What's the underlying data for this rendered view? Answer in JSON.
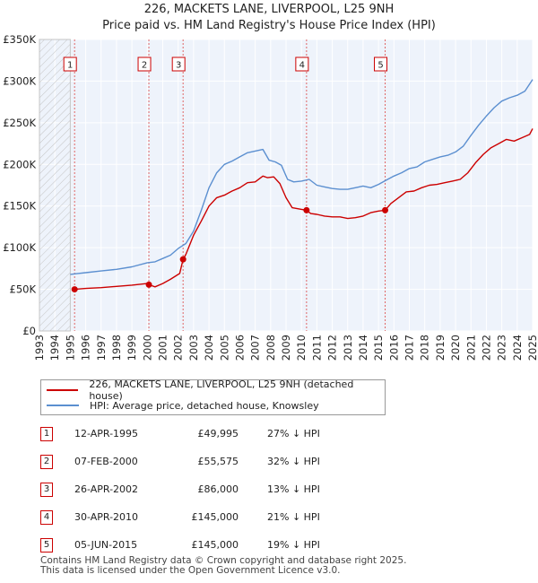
{
  "title": {
    "line1": "226, MACKETS LANE, LIVERPOOL, L25 9NH",
    "line2": "Price paid vs. HM Land Registry's House Price Index (HPI)"
  },
  "legend": {
    "price_label": "226, MACKETS LANE, LIVERPOOL, L25 9NH (detached house)",
    "hpi_label": "HPI: Average price, detached house, Knowsley",
    "price_color": "#cc0000",
    "hpi_color": "#5b8fd0"
  },
  "transactions": [
    {
      "num": "1",
      "date": "12-APR-1995",
      "price": "£49,995",
      "hpi": "27% ↓ HPI"
    },
    {
      "num": "2",
      "date": "07-FEB-2000",
      "price": "£55,575",
      "hpi": "32% ↓ HPI"
    },
    {
      "num": "3",
      "date": "26-APR-2002",
      "price": "£86,000",
      "hpi": "13% ↓ HPI"
    },
    {
      "num": "4",
      "date": "30-APR-2010",
      "price": "£145,000",
      "hpi": "21% ↓ HPI"
    },
    {
      "num": "5",
      "date": "05-JUN-2015",
      "price": "£145,000",
      "hpi": "19% ↓ HPI"
    }
  ],
  "footer": {
    "line1": "Contains HM Land Registry data © Crown copyright and database right 2025.",
    "line2": "This data is licensed under the Open Government Licence v3.0."
  },
  "chart_data": {
    "type": "line",
    "title": "226, MACKETS LANE, LIVERPOOL, L25 9NH — Price paid vs. HM Land Registry's House Price Index (HPI)",
    "xlabel": "",
    "ylabel": "",
    "xlim": [
      1993,
      2025
    ],
    "ylim": [
      0,
      350000
    ],
    "x_ticks": [
      1993,
      1994,
      1995,
      1996,
      1997,
      1998,
      1999,
      2000,
      2001,
      2002,
      2003,
      2004,
      2005,
      2006,
      2007,
      2008,
      2009,
      2010,
      2011,
      2012,
      2013,
      2014,
      2015,
      2016,
      2017,
      2018,
      2019,
      2020,
      2021,
      2022,
      2023,
      2024,
      2025
    ],
    "y_ticks": [
      {
        "value": 0,
        "label": "£0"
      },
      {
        "value": 50000,
        "label": "£50K"
      },
      {
        "value": 100000,
        "label": "£100K"
      },
      {
        "value": 150000,
        "label": "£150K"
      },
      {
        "value": 200000,
        "label": "£200K"
      },
      {
        "value": 250000,
        "label": "£250K"
      },
      {
        "value": 300000,
        "label": "£300K"
      },
      {
        "value": 350000,
        "label": "£350K"
      }
    ],
    "grid": true,
    "hatched_before": 1995.0,
    "series": [
      {
        "name": "226, MACKETS LANE, LIVERPOOL, L25 9NH (detached house)",
        "color": "#cc0000",
        "x": [
          1995.28,
          1996,
          1997,
          1998,
          1999,
          2000.0,
          2000.1,
          2000.5,
          2001,
          2001.5,
          2002.1,
          2002.32,
          2002.5,
          2003,
          2003.5,
          2004,
          2004.5,
          2005,
          2005.5,
          2006,
          2006.5,
          2007,
          2007.5,
          2007.8,
          2008.2,
          2008.6,
          2009,
          2009.4,
          2010.0,
          2010.33,
          2010.6,
          2011,
          2011.5,
          2012,
          2012.5,
          2013,
          2013.5,
          2014,
          2014.5,
          2015.0,
          2015.43,
          2015.8,
          2016.3,
          2016.8,
          2017.3,
          2017.8,
          2018.3,
          2018.8,
          2019.3,
          2019.8,
          2020.3,
          2020.8,
          2021.3,
          2021.8,
          2022.3,
          2022.8,
          2023.3,
          2023.8,
          2024.3,
          2024.8,
          2025.0
        ],
        "y": [
          49995,
          51000,
          52000,
          53500,
          55000,
          57000,
          55575,
          53000,
          57000,
          62000,
          69000,
          86000,
          92000,
          115000,
          132000,
          150000,
          160000,
          163000,
          168000,
          172000,
          178000,
          179000,
          186000,
          184000,
          185000,
          177000,
          160000,
          148000,
          146000,
          145000,
          141000,
          140000,
          138000,
          137000,
          137000,
          135000,
          136000,
          138000,
          142000,
          144000,
          145000,
          153000,
          160000,
          167000,
          168000,
          172000,
          175000,
          176000,
          178000,
          180000,
          182000,
          190000,
          202000,
          212000,
          220000,
          225000,
          230000,
          228000,
          232000,
          236000,
          243000
        ]
      },
      {
        "name": "HPI: Average price, detached house, Knowsley",
        "color": "#5b8fd0",
        "x": [
          1995.0,
          1995.5,
          1996,
          1997,
          1998,
          1999,
          2000,
          2000.5,
          2001,
          2001.5,
          2002,
          2002.5,
          2003,
          2003.5,
          2004,
          2004.5,
          2005,
          2005.5,
          2006,
          2006.5,
          2007,
          2007.5,
          2007.9,
          2008.3,
          2008.7,
          2009.1,
          2009.5,
          2010.0,
          2010.5,
          2011,
          2011.5,
          2012,
          2012.5,
          2013,
          2013.5,
          2014,
          2014.5,
          2015,
          2015.5,
          2016,
          2016.5,
          2017,
          2017.5,
          2018,
          2018.5,
          2019,
          2019.5,
          2020,
          2020.5,
          2021,
          2021.5,
          2022,
          2022.5,
          2023,
          2023.5,
          2024,
          2024.5,
          2025.0
        ],
        "y": [
          68000,
          69000,
          70000,
          72000,
          74000,
          77000,
          82000,
          83000,
          87000,
          91000,
          99000,
          105000,
          120000,
          145000,
          172000,
          190000,
          200000,
          204000,
          209000,
          214000,
          216000,
          218000,
          205000,
          203000,
          199000,
          182000,
          179000,
          180000,
          182000,
          175000,
          173000,
          171000,
          170000,
          170000,
          172000,
          174000,
          172000,
          176000,
          181000,
          186000,
          190000,
          195000,
          197000,
          203000,
          206000,
          209000,
          211000,
          215000,
          222000,
          235000,
          247000,
          258000,
          268000,
          276000,
          280000,
          283000,
          288000,
          302000
        ]
      }
    ],
    "sale_markers": [
      {
        "label": "1",
        "x": 1995.28,
        "y": 49995
      },
      {
        "label": "2",
        "x": 2000.1,
        "y": 55575
      },
      {
        "label": "3",
        "x": 2002.32,
        "y": 86000
      },
      {
        "label": "4",
        "x": 2010.33,
        "y": 145000
      },
      {
        "label": "5",
        "x": 2015.43,
        "y": 145000
      }
    ]
  }
}
